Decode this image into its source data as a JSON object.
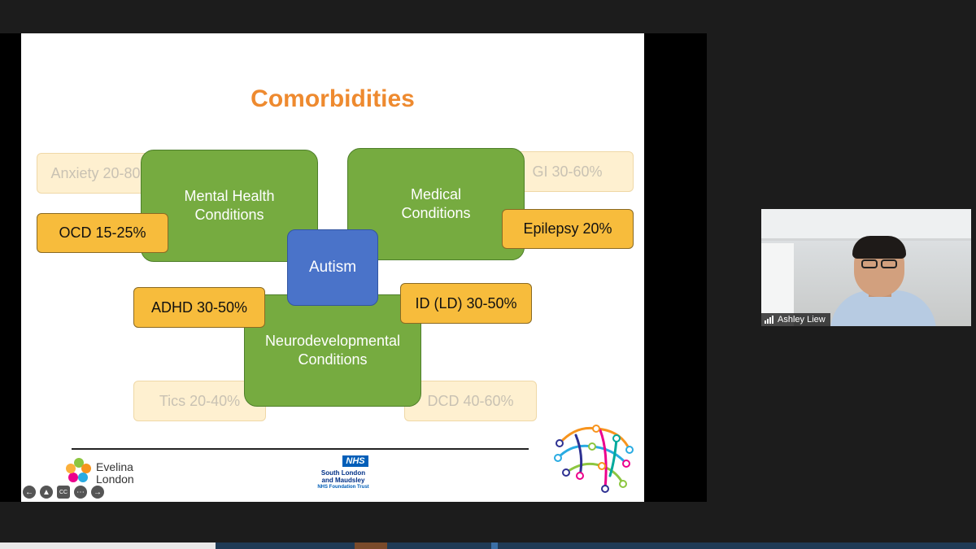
{
  "slide": {
    "title": "Comorbidities",
    "center": "Autism",
    "categories": {
      "mental": "Mental Health Conditions",
      "medical": "Medical Conditions",
      "neuro": "Neurodevelopmental Conditions"
    },
    "tags": {
      "anxiety": "Anxiety 20-80%",
      "ocd": "OCD 15-25%",
      "gi": "GI 30-60%",
      "epilepsy": "Epilepsy 20%",
      "adhd": "ADHD 30-50%",
      "id": "ID (LD) 30-50%",
      "tics": "Tics 20-40%",
      "dcd": "DCD 40-60%"
    },
    "footer": {
      "evelina": "Evelina London",
      "nhs_badge": "NHS",
      "slam_line1": "South London",
      "slam_line2": "and Maudsley",
      "slam_line3": "NHS Foundation Trust"
    }
  },
  "presenter": {
    "name": "Ashley Liew"
  },
  "colors": {
    "title": "#ee8a2f",
    "category": "#76ab40",
    "center": "#4a73c9",
    "tag": "#f7bc3c"
  }
}
